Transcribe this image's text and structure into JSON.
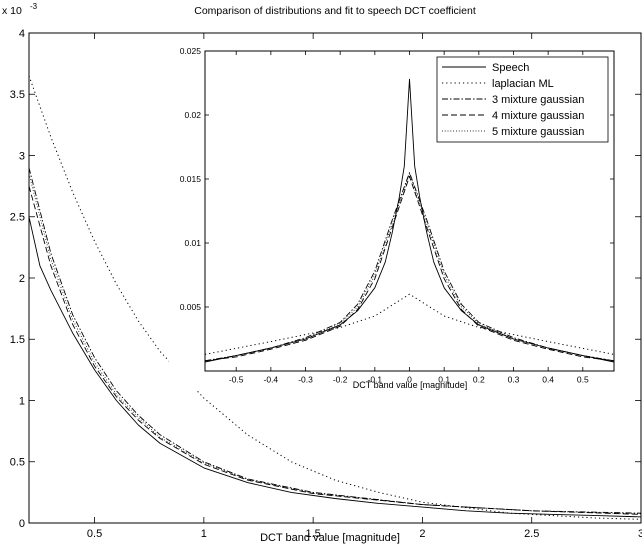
{
  "chart_data": [
    {
      "type": "line",
      "title": "Comparison of distributions and fit to speech DCT coefficient",
      "xlabel": "DCT band value [magnitude]",
      "ylabel": "",
      "y_exponent_label": "x 10",
      "y_exponent": "-3",
      "xlim": [
        0.2,
        3.0
      ],
      "ylim": [
        0,
        4
      ],
      "xticks": [
        0.5,
        1,
        1.5,
        2,
        2.5,
        3
      ],
      "xtick_labels": [
        "0.5",
        "1",
        "1.5",
        "2",
        "2.5",
        "3"
      ],
      "yticks": [
        0,
        0.5,
        1,
        1.5,
        2,
        2.5,
        3,
        3.5,
        4
      ],
      "ytick_labels": [
        "0",
        "0.5",
        "1",
        "1.5",
        "2",
        "2.5",
        "3",
        "3.5",
        "4"
      ],
      "grid": false,
      "series": [
        {
          "name": "Speech",
          "style": "solid",
          "x": [
            0.2,
            0.25,
            0.3,
            0.4,
            0.5,
            0.6,
            0.7,
            0.8,
            0.9,
            1.0,
            1.2,
            1.4,
            1.6,
            1.8,
            2.0,
            2.2,
            2.4,
            2.6,
            2.8,
            3.0
          ],
          "y": [
            2.5,
            2.1,
            1.9,
            1.55,
            1.25,
            1.0,
            0.8,
            0.65,
            0.55,
            0.45,
            0.33,
            0.25,
            0.2,
            0.16,
            0.13,
            0.1,
            0.08,
            0.07,
            0.06,
            0.05
          ]
        },
        {
          "name": "laplacian ML",
          "style": "dotted",
          "x": [
            0.2,
            0.3,
            0.4,
            0.5,
            0.6,
            0.7,
            0.8,
            1.0,
            1.2,
            1.4,
            1.6,
            1.8,
            2.0,
            2.4,
            2.8,
            3.0
          ],
          "y": [
            3.65,
            3.15,
            2.7,
            2.3,
            1.95,
            1.65,
            1.4,
            1.02,
            0.72,
            0.5,
            0.35,
            0.25,
            0.17,
            0.08,
            0.04,
            0.03
          ]
        },
        {
          "name": "3 mixture gaussian",
          "style": "dashdot",
          "x": [
            0.2,
            0.3,
            0.4,
            0.5,
            0.6,
            0.7,
            0.8,
            1.0,
            1.2,
            1.5,
            2.0,
            2.5,
            3.0
          ],
          "y": [
            2.9,
            2.2,
            1.7,
            1.35,
            1.08,
            0.88,
            0.72,
            0.5,
            0.36,
            0.25,
            0.15,
            0.1,
            0.08
          ]
        },
        {
          "name": "4 mixture gaussian",
          "style": "dashed",
          "x": [
            0.2,
            0.3,
            0.4,
            0.5,
            0.6,
            0.7,
            0.8,
            1.0,
            1.2,
            1.5,
            2.0,
            2.5,
            3.0
          ],
          "y": [
            2.75,
            2.1,
            1.62,
            1.28,
            1.03,
            0.84,
            0.69,
            0.48,
            0.35,
            0.24,
            0.15,
            0.1,
            0.07
          ]
        },
        {
          "name": "5 mixture gaussian",
          "style": "dotted-fine",
          "x": [
            0.2,
            0.3,
            0.4,
            0.5,
            0.6,
            0.7,
            0.8,
            1.0,
            1.2,
            1.5,
            2.0,
            2.5,
            3.0
          ],
          "y": [
            2.85,
            2.15,
            1.66,
            1.31,
            1.05,
            0.86,
            0.7,
            0.49,
            0.355,
            0.245,
            0.15,
            0.1,
            0.075
          ]
        }
      ]
    },
    {
      "type": "line",
      "xlabel": "DCT band value [magnitude]",
      "ylabel": "",
      "xlim": [
        -0.59,
        0.59
      ],
      "ylim": [
        0,
        0.025
      ],
      "xticks": [
        -0.5,
        -0.4,
        -0.3,
        -0.2,
        -0.1,
        0,
        0.1,
        0.2,
        0.3,
        0.4,
        0.5
      ],
      "xtick_labels": [
        "-0.5",
        "-0.4",
        "-0.3",
        "-0.2",
        "-0.1",
        "0",
        "0.1",
        "0.2",
        "0.3",
        "0.4",
        "0.5"
      ],
      "yticks": [
        0.005,
        0.01,
        0.015,
        0.02,
        0.025
      ],
      "ytick_labels": [
        "0.005",
        "0.01",
        "0.015",
        "0.02",
        "0.025"
      ],
      "legend_position": "top-right",
      "legend": [
        "Speech",
        "laplacian ML",
        "3 mixture gaussian",
        "4 mixture gaussian",
        "5 mixture gaussian"
      ],
      "series": [
        {
          "name": "Speech",
          "style": "solid",
          "x": [
            -0.59,
            -0.5,
            -0.4,
            -0.3,
            -0.2,
            -0.15,
            -0.1,
            -0.07,
            -0.05,
            -0.03,
            -0.015,
            0,
            0.015,
            0.03,
            0.05,
            0.07,
            0.1,
            0.15,
            0.2,
            0.3,
            0.4,
            0.5,
            0.59
          ],
          "y": [
            0.0007,
            0.0012,
            0.0018,
            0.0025,
            0.0036,
            0.0047,
            0.0065,
            0.0085,
            0.0108,
            0.0135,
            0.016,
            0.0228,
            0.016,
            0.0135,
            0.0108,
            0.0085,
            0.0065,
            0.0047,
            0.0036,
            0.0025,
            0.0018,
            0.0012,
            0.0007
          ]
        },
        {
          "name": "laplacian ML",
          "style": "dotted",
          "x": [
            -0.59,
            -0.4,
            -0.2,
            -0.1,
            0,
            0.1,
            0.2,
            0.4,
            0.59
          ],
          "y": [
            0.0013,
            0.0023,
            0.0034,
            0.0043,
            0.006,
            0.0043,
            0.0034,
            0.0023,
            0.0013
          ]
        },
        {
          "name": "3 mixture gaussian",
          "style": "dashdot",
          "x": [
            -0.59,
            -0.5,
            -0.4,
            -0.3,
            -0.2,
            -0.15,
            -0.1,
            -0.05,
            0,
            0.05,
            0.1,
            0.15,
            0.2,
            0.3,
            0.4,
            0.5,
            0.59
          ],
          "y": [
            0.0008,
            0.0012,
            0.0018,
            0.0026,
            0.0038,
            0.0052,
            0.0078,
            0.0118,
            0.0155,
            0.0118,
            0.0078,
            0.0052,
            0.0038,
            0.0026,
            0.0018,
            0.0012,
            0.0008
          ]
        },
        {
          "name": "4 mixture gaussian",
          "style": "dashed",
          "x": [
            -0.59,
            -0.5,
            -0.4,
            -0.3,
            -0.2,
            -0.15,
            -0.1,
            -0.05,
            0,
            0.05,
            0.1,
            0.15,
            0.2,
            0.3,
            0.4,
            0.5,
            0.59
          ],
          "y": [
            0.0008,
            0.0011,
            0.0017,
            0.0024,
            0.0035,
            0.0048,
            0.0072,
            0.0112,
            0.0152,
            0.0112,
            0.0072,
            0.0048,
            0.0035,
            0.0024,
            0.0017,
            0.0011,
            0.0008
          ]
        },
        {
          "name": "5 mixture gaussian",
          "style": "dotted-fine",
          "x": [
            -0.59,
            -0.5,
            -0.4,
            -0.3,
            -0.2,
            -0.15,
            -0.1,
            -0.05,
            0,
            0.05,
            0.1,
            0.15,
            0.2,
            0.3,
            0.4,
            0.5,
            0.59
          ],
          "y": [
            0.0008,
            0.0012,
            0.0018,
            0.0025,
            0.0037,
            0.005,
            0.0075,
            0.0115,
            0.0154,
            0.0115,
            0.0075,
            0.005,
            0.0037,
            0.0025,
            0.0018,
            0.0012,
            0.0008
          ]
        }
      ]
    }
  ]
}
